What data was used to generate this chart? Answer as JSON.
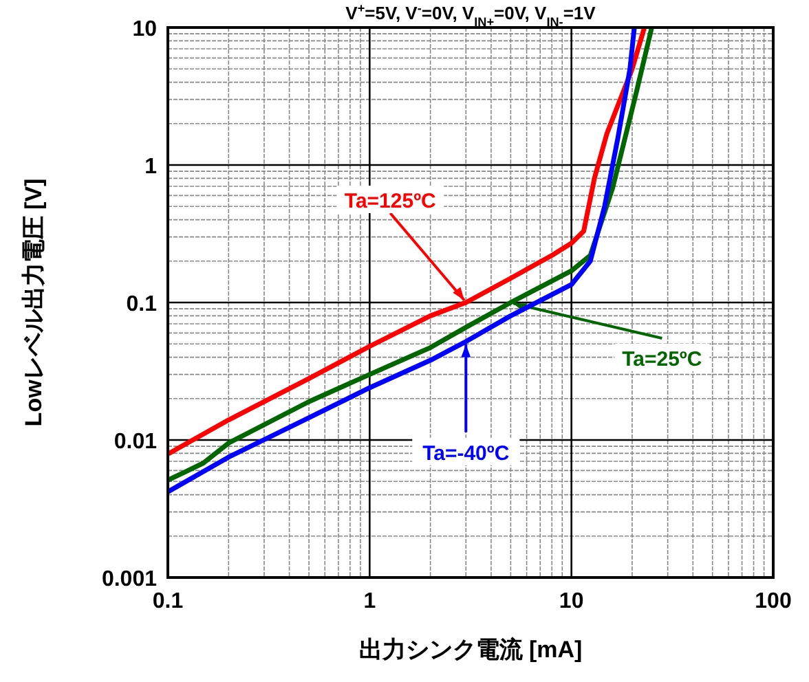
{
  "chart_data": {
    "type": "line",
    "title": "V$^{+}$=5V, V$^{-}$=0V, V$_{IN+}$=0V, V$_{IN-}$=1V",
    "xlabel": "出力シンク電流 [mA]",
    "ylabel": "Lowレベル出力電圧 [V]",
    "log": "xy",
    "grid": true,
    "marker": "none",
    "line_style": "solid",
    "xlim": [
      0.1,
      100
    ],
    "ylim": [
      0.001,
      10
    ],
    "xticks": [
      0.1,
      1,
      10,
      100
    ],
    "yticks": [
      0.001,
      0.01,
      0.1,
      1,
      10
    ],
    "series": [
      {
        "name": "Ta=125ºC",
        "color": "#ff0000",
        "x": [
          0.1,
          0.2,
          0.5,
          1,
          2,
          3,
          5,
          8,
          10,
          11.5,
          13,
          15,
          20,
          23
        ],
        "values": [
          0.0079,
          0.014,
          0.028,
          0.048,
          0.08,
          0.1,
          0.15,
          0.22,
          0.27,
          0.33,
          0.8,
          1.7,
          5,
          10
        ]
      },
      {
        "name": "Ta=25ºC",
        "color": "#006600",
        "x": [
          0.1,
          0.12,
          0.15,
          0.2,
          0.5,
          1,
          2,
          3,
          5,
          10,
          12.4,
          16,
          21,
          25
        ],
        "values": [
          0.0051,
          0.0058,
          0.0068,
          0.0095,
          0.019,
          0.03,
          0.047,
          0.066,
          0.1,
          0.17,
          0.22,
          0.68,
          3.4,
          10
        ]
      },
      {
        "name": "Ta=-40ºC",
        "color": "#0000ff",
        "x": [
          0.1,
          0.2,
          0.5,
          1,
          2,
          3,
          5,
          10,
          12.4,
          14.6,
          17,
          19.5,
          20.5
        ],
        "values": [
          0.0042,
          0.0075,
          0.0145,
          0.024,
          0.038,
          0.052,
          0.08,
          0.135,
          0.2,
          0.5,
          1.58,
          5,
          10
        ]
      }
    ]
  }
}
